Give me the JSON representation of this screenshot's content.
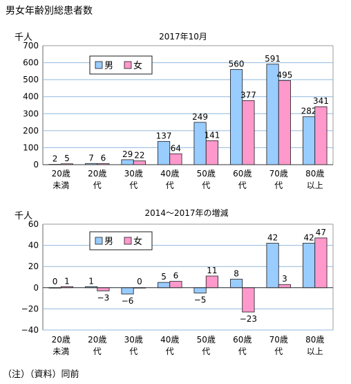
{
  "figure": {
    "title": "男女年齢別総患者数",
    "footnote": "（注）（資料）同前"
  },
  "chart_data": [
    {
      "type": "bar",
      "title": "2017年10月",
      "ylabel": "千人",
      "ylim": [
        0,
        700
      ],
      "yticks": [
        0,
        100,
        200,
        300,
        400,
        500,
        600,
        700
      ],
      "grid": true,
      "legend_position": "top-left",
      "categories": [
        [
          "20歳",
          "未満"
        ],
        [
          "20歳",
          "代"
        ],
        [
          "30歳",
          "代"
        ],
        [
          "40歳",
          "代"
        ],
        [
          "50歳",
          "代"
        ],
        [
          "60歳",
          "代"
        ],
        [
          "70歳",
          "代"
        ],
        [
          "80歳",
          "以上"
        ]
      ],
      "series": [
        {
          "name": "男",
          "color": "#99CCFF",
          "values": [
            2,
            7,
            29,
            137,
            249,
            560,
            591,
            282
          ]
        },
        {
          "name": "女",
          "color": "#FF99CC",
          "values": [
            5,
            6,
            22,
            64,
            141,
            377,
            495,
            341
          ]
        }
      ]
    },
    {
      "type": "bar",
      "title": "2014～2017年の増減",
      "ylabel": "千人",
      "ylim": [
        -40,
        60
      ],
      "yticks": [
        -40,
        -20,
        0,
        20,
        40,
        60
      ],
      "grid": true,
      "legend_position": "top-left",
      "categories": [
        [
          "20歳",
          "未満"
        ],
        [
          "20歳",
          "代"
        ],
        [
          "30歳",
          "代"
        ],
        [
          "40歳",
          "代"
        ],
        [
          "50歳",
          "代"
        ],
        [
          "60歳",
          "代"
        ],
        [
          "70歳",
          "代"
        ],
        [
          "80歳",
          "以上"
        ]
      ],
      "series": [
        {
          "name": "男",
          "color": "#99CCFF",
          "values": [
            0,
            1,
            -6,
            5,
            -5,
            8,
            42,
            42
          ]
        },
        {
          "name": "女",
          "color": "#FF99CC",
          "values": [
            1,
            -3,
            0,
            6,
            11,
            -23,
            3,
            47
          ]
        }
      ]
    }
  ]
}
